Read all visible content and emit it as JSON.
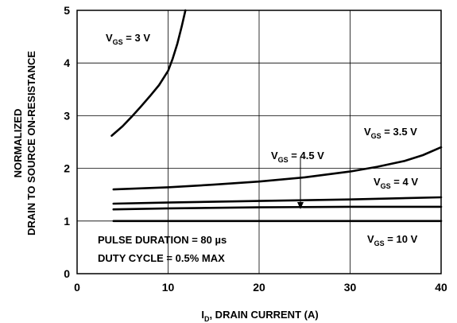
{
  "chart_data": {
    "type": "line",
    "title": "",
    "xlabel": "I",
    "xlabel_sub": "D",
    "xlabel_rest": ", DRAIN CURRENT (A)",
    "ylabel_line1": "NORMALIZED",
    "ylabel_line2": "DRAIN TO SOURCE ON-RESISTANCE",
    "xlim": [
      0,
      40
    ],
    "ylim": [
      0,
      5
    ],
    "x_ticks": [
      0,
      10,
      20,
      30,
      40
    ],
    "y_ticks": [
      0,
      1,
      2,
      3,
      4,
      5
    ],
    "grid": true,
    "note_line1": "PULSE DURATION = 80 µs",
    "note_line2": "DUTY CYCLE = 0.5% MAX",
    "series": [
      {
        "label_main": "V",
        "label_sub": "GS",
        "label_value": " = 3 V",
        "x": [
          3.8,
          5,
          6,
          7,
          8,
          9,
          10,
          10.5,
          11,
          11.5,
          11.9
        ],
        "y": [
          2.62,
          2.8,
          2.98,
          3.17,
          3.37,
          3.58,
          3.85,
          4.08,
          4.36,
          4.7,
          5.0
        ]
      },
      {
        "label_main": "V",
        "label_sub": "GS",
        "label_value": " = 3.5 V",
        "x": [
          4,
          10,
          15,
          20,
          25,
          30,
          33,
          36,
          38,
          40
        ],
        "y": [
          1.6,
          1.64,
          1.69,
          1.75,
          1.83,
          1.94,
          2.03,
          2.14,
          2.25,
          2.4
        ]
      },
      {
        "label_main": "V",
        "label_sub": "GS",
        "label_value": " = 4 V",
        "x": [
          4,
          10,
          20,
          30,
          40
        ],
        "y": [
          1.33,
          1.35,
          1.38,
          1.41,
          1.45
        ]
      },
      {
        "label_main": "V",
        "label_sub": "GS",
        "label_value": " = 4.5 V",
        "x": [
          4,
          10,
          20,
          30,
          40
        ],
        "y": [
          1.22,
          1.24,
          1.26,
          1.27,
          1.27
        ]
      },
      {
        "label_main": "V",
        "label_sub": "GS",
        "label_value": " = 10 V",
        "x": [
          4,
          10,
          20,
          30,
          40
        ],
        "y": [
          1.0,
          1.0,
          1.0,
          1.0,
          1.0
        ]
      }
    ]
  }
}
